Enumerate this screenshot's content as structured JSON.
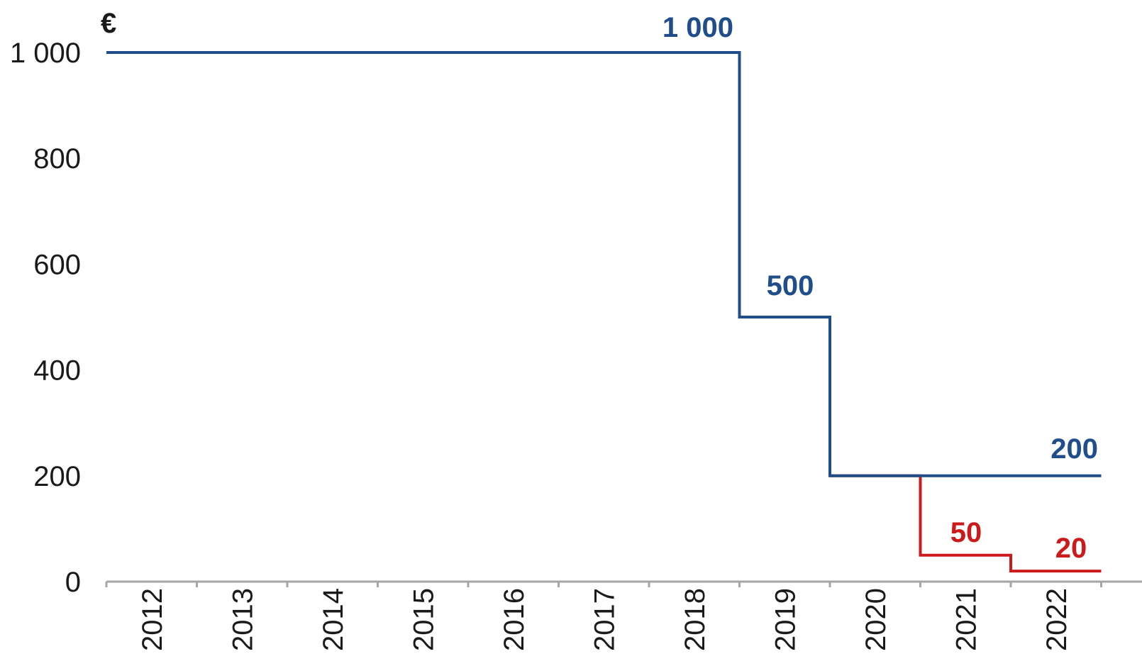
{
  "chart_data": {
    "type": "line",
    "step": "post",
    "unit_label": "€",
    "x": [
      "2012",
      "2013",
      "2014",
      "2015",
      "2016",
      "2017",
      "2018",
      "2019",
      "2020",
      "2021",
      "2022"
    ],
    "y_ticks": [
      "0",
      "200",
      "400",
      "600",
      "800",
      "1 000"
    ],
    "ylim": [
      0,
      1000
    ],
    "grid": false,
    "series": [
      {
        "color": "#1f4e8a",
        "steps": [
          {
            "from": "2012",
            "value": 1000
          },
          {
            "from": "2019",
            "value": 500
          },
          {
            "from": "2020",
            "value": 200
          }
        ]
      },
      {
        "color": "#cc1a1a",
        "steps": [
          {
            "from": "2020",
            "value": 200
          },
          {
            "from": "2021",
            "value": 50
          },
          {
            "from": "2022",
            "value": 20
          }
        ]
      }
    ],
    "data_labels": [
      {
        "text": "1 000",
        "series": 0
      },
      {
        "text": "500",
        "series": 0
      },
      {
        "text": "200",
        "series": 0
      },
      {
        "text": "50",
        "series": 1
      },
      {
        "text": "20",
        "series": 1
      }
    ]
  }
}
